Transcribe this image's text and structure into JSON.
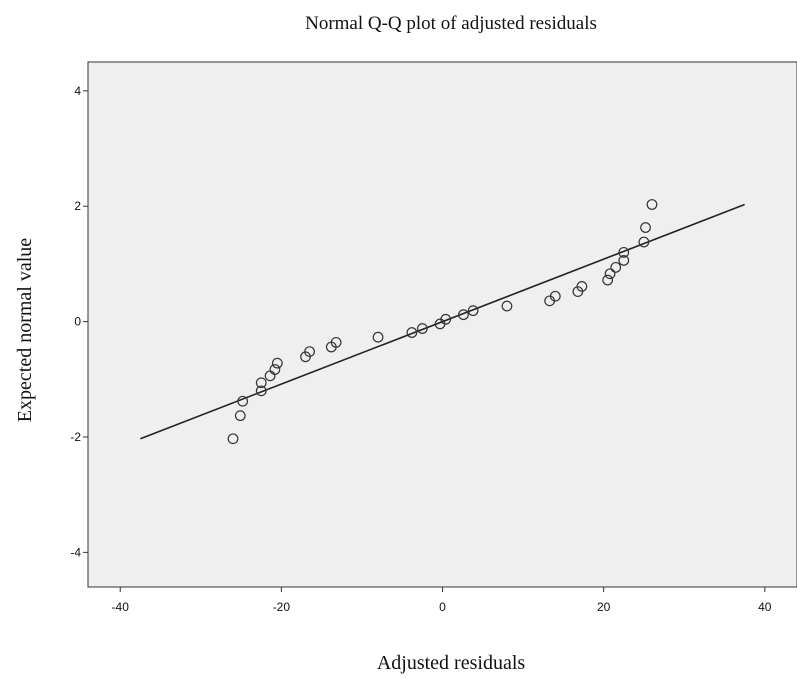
{
  "chart_data": {
    "type": "scatter",
    "title": "Normal Q-Q plot of adjusted residuals",
    "subtitle": "",
    "xlabel": "Adjusted residuals",
    "ylabel": "Expected normal value",
    "xlim": [
      -44,
      44
    ],
    "ylim": [
      -4.6,
      4.5
    ],
    "x_ticks": [
      -40,
      -20,
      0,
      20,
      40
    ],
    "x_tick_labels": [
      "-40",
      "-20",
      "0",
      "20",
      "40"
    ],
    "y_ticks": [
      -4,
      -2,
      0,
      2,
      4
    ],
    "y_tick_labels": [
      "-4",
      "-2",
      "0",
      "2",
      "4"
    ],
    "grid": false,
    "reference_line": {
      "x": [
        -37.5,
        37.5
      ],
      "y": [
        -2.03,
        2.03
      ]
    },
    "points": [
      {
        "x": -26.0,
        "y": -2.03
      },
      {
        "x": -25.1,
        "y": -1.63
      },
      {
        "x": -24.8,
        "y": -1.38
      },
      {
        "x": -22.5,
        "y": -1.2
      },
      {
        "x": -22.5,
        "y": -1.06
      },
      {
        "x": -21.4,
        "y": -0.94
      },
      {
        "x": -20.8,
        "y": -0.83
      },
      {
        "x": -20.5,
        "y": -0.72
      },
      {
        "x": -17.0,
        "y": -0.61
      },
      {
        "x": -16.5,
        "y": -0.52
      },
      {
        "x": -13.8,
        "y": -0.44
      },
      {
        "x": -13.2,
        "y": -0.36
      },
      {
        "x": -8.0,
        "y": -0.27
      },
      {
        "x": -3.8,
        "y": -0.19
      },
      {
        "x": -2.5,
        "y": -0.12
      },
      {
        "x": -0.3,
        "y": -0.04
      },
      {
        "x": 0.4,
        "y": 0.04
      },
      {
        "x": 2.6,
        "y": 0.12
      },
      {
        "x": 3.8,
        "y": 0.19
      },
      {
        "x": 8.0,
        "y": 0.27
      },
      {
        "x": 13.3,
        "y": 0.36
      },
      {
        "x": 14.0,
        "y": 0.44
      },
      {
        "x": 16.8,
        "y": 0.52
      },
      {
        "x": 17.3,
        "y": 0.61
      },
      {
        "x": 20.5,
        "y": 0.72
      },
      {
        "x": 20.8,
        "y": 0.83
      },
      {
        "x": 21.5,
        "y": 0.94
      },
      {
        "x": 22.5,
        "y": 1.06
      },
      {
        "x": 22.5,
        "y": 1.2
      },
      {
        "x": 25.0,
        "y": 1.38
      },
      {
        "x": 25.2,
        "y": 1.63
      },
      {
        "x": 26.0,
        "y": 2.03
      }
    ],
    "colors": {
      "plot_background": "#efefef",
      "frame": "#333333",
      "marker": "#333333",
      "line": "#222222"
    }
  }
}
